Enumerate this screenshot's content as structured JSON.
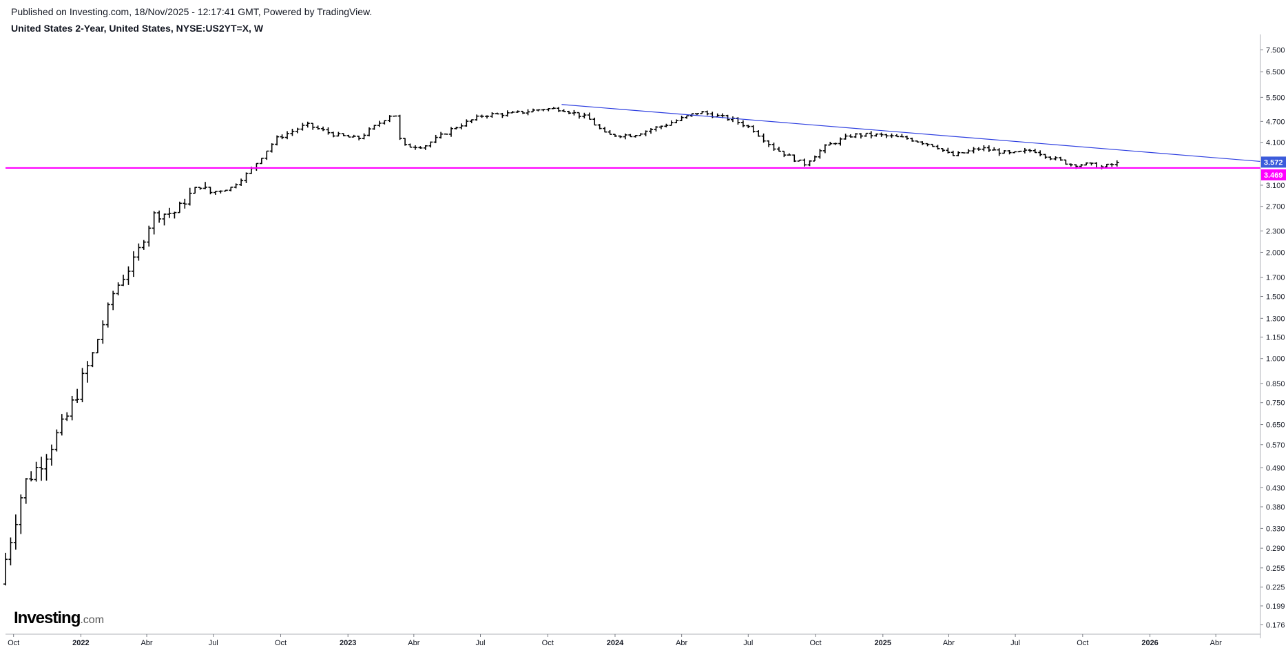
{
  "header": {
    "published": "Published on Investing.com, 18/Nov/2025 - 12:17:41 GMT, Powered by TradingView.",
    "symbol": "United States 2-Year, United States, NYSE:US2YT=X, W"
  },
  "logo": {
    "main": "Investing",
    "suffix": ".com"
  },
  "colors": {
    "bars": "#000000",
    "trendline": "#2e3fe0",
    "support": "#ff00ff",
    "trend_label_bg": "#3b5bdb",
    "support_label_bg": "#ff00ff"
  },
  "chart_data": {
    "type": "ohlc",
    "scale": "log",
    "ylim": [
      0.17,
      8.0
    ],
    "y_ticks": [
      7.5,
      6.5,
      5.5,
      4.7,
      4.1,
      3.572,
      3.469,
      3.1,
      2.7,
      2.3,
      2.0,
      1.7,
      1.5,
      1.3,
      1.15,
      1.0,
      0.85,
      0.75,
      0.65,
      0.57,
      0.49,
      0.43,
      0.38,
      0.33,
      0.29,
      0.255,
      0.225,
      0.199,
      0.176
    ],
    "y_tick_labels": [
      "7.500",
      "6.500",
      "5.500",
      "4.700",
      "4.100",
      "3.572",
      "3.469",
      "3.100",
      "2.700",
      "2.300",
      "2.000",
      "1.700",
      "1.500",
      "1.300",
      "1.150",
      "1.000",
      "0.850",
      "0.750",
      "0.650",
      "0.570",
      "0.490",
      "0.430",
      "0.380",
      "0.330",
      "0.290",
      "0.255",
      "0.225",
      "0.199",
      "0.176"
    ],
    "x_range": [
      "2021-09-20",
      "2026-06-01"
    ],
    "x_ticks": [
      {
        "date": "2021-10-01",
        "label": "Oct",
        "bold": false
      },
      {
        "date": "2022-01-01",
        "label": "2022",
        "bold": true
      },
      {
        "date": "2022-04-01",
        "label": "Abr",
        "bold": false
      },
      {
        "date": "2022-07-01",
        "label": "Jul",
        "bold": false
      },
      {
        "date": "2022-10-01",
        "label": "Oct",
        "bold": false
      },
      {
        "date": "2023-01-01",
        "label": "2023",
        "bold": true
      },
      {
        "date": "2023-04-01",
        "label": "Abr",
        "bold": false
      },
      {
        "date": "2023-07-01",
        "label": "Jul",
        "bold": false
      },
      {
        "date": "2023-10-01",
        "label": "Oct",
        "bold": false
      },
      {
        "date": "2024-01-01",
        "label": "2024",
        "bold": true
      },
      {
        "date": "2024-04-01",
        "label": "Abr",
        "bold": false
      },
      {
        "date": "2024-07-01",
        "label": "Jul",
        "bold": false
      },
      {
        "date": "2024-10-01",
        "label": "Oct",
        "bold": false
      },
      {
        "date": "2025-01-01",
        "label": "2025",
        "bold": true
      },
      {
        "date": "2025-04-01",
        "label": "Abr",
        "bold": false
      },
      {
        "date": "2025-07-01",
        "label": "Jul",
        "bold": false
      },
      {
        "date": "2025-10-01",
        "label": "Oct",
        "bold": false
      },
      {
        "date": "2026-01-01",
        "label": "2026",
        "bold": true
      },
      {
        "date": "2026-04-01",
        "label": "Abr",
        "bold": false
      }
    ],
    "closes": [
      {
        "date": "2021-09-20",
        "close": 0.27
      },
      {
        "date": "2021-10-15",
        "close": 0.44
      },
      {
        "date": "2021-11-05",
        "close": 0.5
      },
      {
        "date": "2021-12-10",
        "close": 0.66
      },
      {
        "date": "2022-01-15",
        "close": 1.0
      },
      {
        "date": "2022-02-15",
        "close": 1.55
      },
      {
        "date": "2022-03-15",
        "close": 1.9
      },
      {
        "date": "2022-04-10",
        "close": 2.55
      },
      {
        "date": "2022-05-10",
        "close": 2.6
      },
      {
        "date": "2022-06-10",
        "close": 3.1
      },
      {
        "date": "2022-06-25",
        "close": 2.95
      },
      {
        "date": "2022-07-25",
        "close": 3.05
      },
      {
        "date": "2022-08-20",
        "close": 3.4
      },
      {
        "date": "2022-09-25",
        "close": 4.2
      },
      {
        "date": "2022-11-05",
        "close": 4.6
      },
      {
        "date": "2022-12-15",
        "close": 4.3
      },
      {
        "date": "2023-01-15",
        "close": 4.2
      },
      {
        "date": "2023-03-05",
        "close": 5.0
      },
      {
        "date": "2023-03-15",
        "close": 4.0
      },
      {
        "date": "2023-04-15",
        "close": 4.0
      },
      {
        "date": "2023-05-25",
        "close": 4.5
      },
      {
        "date": "2023-07-05",
        "close": 4.9
      },
      {
        "date": "2023-08-15",
        "close": 4.95
      },
      {
        "date": "2023-09-25",
        "close": 5.1
      },
      {
        "date": "2023-10-20",
        "close": 5.1
      },
      {
        "date": "2023-11-25",
        "close": 4.8
      },
      {
        "date": "2023-12-20",
        "close": 4.3
      },
      {
        "date": "2024-01-25",
        "close": 4.3
      },
      {
        "date": "2024-03-10",
        "close": 4.6
      },
      {
        "date": "2024-04-25",
        "close": 5.0
      },
      {
        "date": "2024-06-10",
        "close": 4.75
      },
      {
        "date": "2024-07-05",
        "close": 4.5
      },
      {
        "date": "2024-08-05",
        "close": 3.95
      },
      {
        "date": "2024-09-15",
        "close": 3.55
      },
      {
        "date": "2024-10-15",
        "close": 4.0
      },
      {
        "date": "2024-11-20",
        "close": 4.3
      },
      {
        "date": "2024-12-25",
        "close": 4.3
      },
      {
        "date": "2025-02-05",
        "close": 4.2
      },
      {
        "date": "2025-03-15",
        "close": 4.0
      },
      {
        "date": "2025-04-05",
        "close": 3.75
      },
      {
        "date": "2025-05-15",
        "close": 3.95
      },
      {
        "date": "2025-06-25",
        "close": 3.8
      },
      {
        "date": "2025-07-25",
        "close": 3.9
      },
      {
        "date": "2025-08-20",
        "close": 3.7
      },
      {
        "date": "2025-09-15",
        "close": 3.55
      },
      {
        "date": "2025-10-10",
        "close": 3.55
      },
      {
        "date": "2025-10-25",
        "close": 3.48
      },
      {
        "date": "2025-11-17",
        "close": 3.572
      }
    ],
    "trendline": {
      "from": {
        "date": "2023-10-20",
        "value": 5.25
      },
      "to": {
        "date": "2026-06-01",
        "value": 3.62
      }
    },
    "support_line": {
      "value": 3.469
    },
    "last_price_label": "3.572",
    "support_label": "3.469"
  }
}
